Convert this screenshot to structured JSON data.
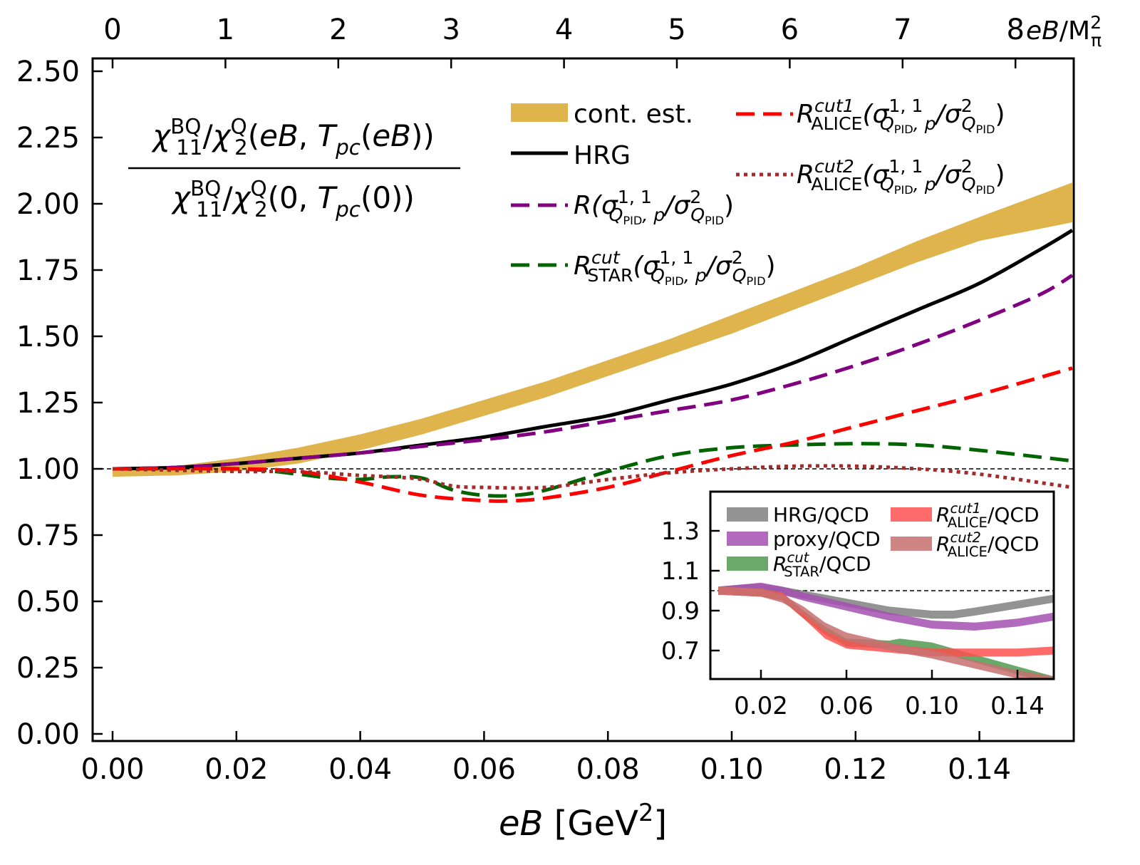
{
  "chart_data": {
    "type": "line",
    "xlabel": [
      {
        "t": "eB",
        "i": true
      },
      {
        "t": " [GeV"
      },
      {
        "t": "2",
        "s": "sup"
      },
      {
        "t": "]"
      }
    ],
    "xlim": [
      -0.0032,
      0.1552
    ],
    "ylim": [
      -0.027,
      2.55
    ],
    "xticks": [
      "0.00",
      "0.02",
      "0.04",
      "0.06",
      "0.08",
      "0.10",
      "0.12",
      "0.14"
    ],
    "xtick_values": [
      0,
      0.02,
      0.04,
      0.06,
      0.08,
      0.1,
      0.12,
      0.14
    ],
    "yticks": [
      "0.00",
      "0.25",
      "0.50",
      "0.75",
      "1.00",
      "1.25",
      "1.50",
      "1.75",
      "2.00",
      "2.25",
      "2.50"
    ],
    "ytick_values": [
      0,
      0.25,
      0.5,
      0.75,
      1.0,
      1.25,
      1.5,
      1.75,
      2.0,
      2.25,
      2.5
    ],
    "top_axis": {
      "ticks": [
        "0",
        "1",
        "2",
        "3",
        "4",
        "5",
        "6",
        "7",
        "8"
      ],
      "tick_values": [
        0,
        1,
        2,
        3,
        4,
        5,
        6,
        7,
        8
      ],
      "label": [
        {
          "t": "eB",
          "i": true
        },
        {
          "t": "/M"
        },
        {
          "t": "2",
          "s": "sup"
        },
        {
          "t": "π",
          "s": "sub",
          "stack": true
        }
      ]
    },
    "ylabel_numerator": [
      {
        "t": "χ",
        "i": true
      },
      {
        "t": "BQ",
        "s": "sup"
      },
      {
        "t": "11",
        "s": "sub",
        "stack": true
      },
      {
        "t": "/"
      },
      {
        "t": "χ",
        "i": true
      },
      {
        "t": "Q",
        "s": "sup"
      },
      {
        "t": "2",
        "s": "sub",
        "stack": true
      },
      {
        "t": "("
      },
      {
        "t": "eB",
        "i": true
      },
      {
        "t": ", "
      },
      {
        "t": "T",
        "i": true
      },
      {
        "t": "pc",
        "s": "sub",
        "i": true
      },
      {
        "t": "("
      },
      {
        "t": "eB",
        "i": true
      },
      {
        "t": "))"
      }
    ],
    "ylabel_denominator": [
      {
        "t": "χ",
        "i": true
      },
      {
        "t": "BQ",
        "s": "sup"
      },
      {
        "t": "11",
        "s": "sub",
        "stack": true
      },
      {
        "t": "/"
      },
      {
        "t": "χ",
        "i": true
      },
      {
        "t": "Q",
        "s": "sup"
      },
      {
        "t": "2",
        "s": "sub",
        "stack": true
      },
      {
        "t": "(0, "
      },
      {
        "t": "T",
        "i": true
      },
      {
        "t": "pc",
        "s": "sub",
        "i": true
      },
      {
        "t": "(0))"
      }
    ],
    "reference_line": 1.0,
    "bands": [
      {
        "name": "cont. est.",
        "color": "#e0b44c",
        "x": [
          0,
          0.01,
          0.02,
          0.03,
          0.04,
          0.05,
          0.06,
          0.07,
          0.08,
          0.09,
          0.1,
          0.11,
          0.12,
          0.13,
          0.14,
          0.155
        ],
        "lower": [
          0.97,
          0.975,
          0.99,
          1.02,
          1.07,
          1.13,
          1.2,
          1.27,
          1.35,
          1.43,
          1.51,
          1.6,
          1.69,
          1.78,
          1.86,
          1.93
        ],
        "upper": [
          1.0,
          1.01,
          1.04,
          1.08,
          1.13,
          1.19,
          1.26,
          1.33,
          1.41,
          1.49,
          1.58,
          1.67,
          1.76,
          1.86,
          1.95,
          2.08
        ]
      }
    ],
    "series": [
      {
        "name": "HRG",
        "color": "#000000",
        "style": "solid",
        "x": [
          0,
          0.01,
          0.02,
          0.03,
          0.04,
          0.05,
          0.06,
          0.07,
          0.08,
          0.09,
          0.1,
          0.11,
          0.12,
          0.13,
          0.14,
          0.15,
          0.155
        ],
        "y": [
          1.0,
          1.005,
          1.02,
          1.04,
          1.06,
          1.09,
          1.12,
          1.16,
          1.2,
          1.26,
          1.32,
          1.4,
          1.5,
          1.6,
          1.7,
          1.83,
          1.9
        ]
      },
      {
        "name": "R proxy",
        "color": "#800080",
        "style": "dashed",
        "x": [
          0,
          0.01,
          0.02,
          0.03,
          0.04,
          0.05,
          0.06,
          0.07,
          0.08,
          0.09,
          0.1,
          0.11,
          0.12,
          0.13,
          0.14,
          0.15,
          0.155
        ],
        "y": [
          1.0,
          1.005,
          1.02,
          1.04,
          1.06,
          1.085,
          1.11,
          1.14,
          1.18,
          1.22,
          1.26,
          1.32,
          1.39,
          1.47,
          1.56,
          1.66,
          1.73
        ]
      },
      {
        "name": "R STAR cut",
        "color": "#006400",
        "style": "dashed",
        "x": [
          0,
          0.02,
          0.03,
          0.035,
          0.04,
          0.045,
          0.05,
          0.055,
          0.06,
          0.065,
          0.07,
          0.08,
          0.09,
          0.1,
          0.11,
          0.12,
          0.13,
          0.14,
          0.155
        ],
        "y": [
          1.0,
          1.0,
          0.98,
          0.965,
          0.96,
          0.97,
          0.965,
          0.92,
          0.9,
          0.9,
          0.92,
          0.99,
          1.05,
          1.08,
          1.09,
          1.095,
          1.09,
          1.07,
          1.03
        ]
      },
      {
        "name": "R ALICE cut1",
        "color": "#ff0000",
        "style": "dashed",
        "x": [
          0,
          0.02,
          0.03,
          0.04,
          0.05,
          0.06,
          0.065,
          0.07,
          0.08,
          0.09,
          0.1,
          0.11,
          0.12,
          0.13,
          0.14,
          0.155
        ],
        "y": [
          1.0,
          1.0,
          0.99,
          0.95,
          0.9,
          0.88,
          0.88,
          0.89,
          0.93,
          0.99,
          1.05,
          1.1,
          1.16,
          1.22,
          1.28,
          1.38
        ]
      },
      {
        "name": "R ALICE cut2",
        "color": "#a52a2a",
        "style": "dotted",
        "x": [
          0,
          0.02,
          0.03,
          0.04,
          0.045,
          0.05,
          0.055,
          0.06,
          0.07,
          0.08,
          0.09,
          0.1,
          0.11,
          0.12,
          0.13,
          0.14,
          0.155
        ],
        "y": [
          1.0,
          0.99,
          0.99,
          0.975,
          0.97,
          0.96,
          0.935,
          0.93,
          0.93,
          0.96,
          0.985,
          1.0,
          1.01,
          1.01,
          1.0,
          0.98,
          0.93
        ]
      }
    ],
    "legend": [
      {
        "kind": "band",
        "color": "#e0b44c",
        "label": [
          {
            "t": "cont. est."
          }
        ]
      },
      {
        "kind": "solid",
        "color": "#000000",
        "label": [
          {
            "t": "HRG"
          }
        ]
      },
      {
        "kind": "dashed",
        "color": "#800080",
        "label": [
          {
            "t": "R",
            "i": true
          },
          {
            "t": "(σ",
            "i": true
          },
          {
            "t": "1, 1",
            "s": "sup"
          },
          {
            "t": "Q",
            "s": "sub",
            "stack": true,
            "i": true
          },
          {
            "t": "PID",
            "s": "ssub"
          },
          {
            "t": ", p",
            "s": "sub",
            "i": true
          },
          {
            "t": "/σ",
            "i": true
          },
          {
            "t": "2",
            "s": "sup"
          },
          {
            "t": "Q",
            "s": "sub",
            "stack": true,
            "i": true
          },
          {
            "t": "PID",
            "s": "ssub"
          },
          {
            "t": ")"
          }
        ]
      },
      {
        "kind": "dashed",
        "color": "#006400",
        "label": [
          {
            "t": "R",
            "i": true
          },
          {
            "t": "cut",
            "s": "sup",
            "i": true
          },
          {
            "t": "STAR",
            "s": "sub",
            "stack": true
          },
          {
            "t": "(σ",
            "i": true
          },
          {
            "t": "1, 1",
            "s": "sup"
          },
          {
            "t": "Q",
            "s": "sub",
            "stack": true,
            "i": true
          },
          {
            "t": "PID",
            "s": "ssub"
          },
          {
            "t": ", p",
            "s": "sub",
            "i": true
          },
          {
            "t": "/σ",
            "i": true
          },
          {
            "t": "2",
            "s": "sup"
          },
          {
            "t": "Q",
            "s": "sub",
            "stack": true,
            "i": true
          },
          {
            "t": "PID",
            "s": "ssub"
          },
          {
            "t": ")"
          }
        ]
      },
      {
        "kind": "dashed",
        "color": "#ff0000",
        "label": [
          {
            "t": "R",
            "i": true
          },
          {
            "t": "cut1",
            "s": "sup",
            "i": true
          },
          {
            "t": "ALICE",
            "s": "sub",
            "stack": true
          },
          {
            "t": "(σ",
            "i": true
          },
          {
            "t": "1, 1",
            "s": "sup"
          },
          {
            "t": "Q",
            "s": "sub",
            "stack": true,
            "i": true
          },
          {
            "t": "PID",
            "s": "ssub"
          },
          {
            "t": ", p",
            "s": "sub",
            "i": true
          },
          {
            "t": "/σ",
            "i": true
          },
          {
            "t": "2",
            "s": "sup"
          },
          {
            "t": "Q",
            "s": "sub",
            "stack": true,
            "i": true
          },
          {
            "t": "PID",
            "s": "ssub"
          },
          {
            "t": ")"
          }
        ]
      },
      {
        "kind": "dotted",
        "color": "#a52a2a",
        "label": [
          {
            "t": "R",
            "i": true
          },
          {
            "t": "cut2",
            "s": "sup",
            "i": true
          },
          {
            "t": "ALICE",
            "s": "sub",
            "stack": true
          },
          {
            "t": "(σ",
            "i": true
          },
          {
            "t": "1, 1",
            "s": "sup"
          },
          {
            "t": "Q",
            "s": "sub",
            "stack": true,
            "i": true
          },
          {
            "t": "PID",
            "s": "ssub"
          },
          {
            "t": ", p",
            "s": "sub",
            "i": true
          },
          {
            "t": "/σ",
            "i": true
          },
          {
            "t": "2",
            "s": "sup"
          },
          {
            "t": "Q",
            "s": "sub",
            "stack": true,
            "i": true
          },
          {
            "t": "PID",
            "s": "ssub"
          },
          {
            "t": ")"
          }
        ]
      }
    ],
    "inset": {
      "type": "band",
      "xlim": [
        -0.0037,
        0.157
      ],
      "ylim": [
        0.557,
        1.5
      ],
      "xticks": [
        "0.02",
        "0.06",
        "0.10",
        "0.14"
      ],
      "xtick_values": [
        0.02,
        0.06,
        0.1,
        0.14
      ],
      "yticks": [
        "0.7",
        "0.9",
        "1.1",
        "1.3"
      ],
      "ytick_values": [
        0.7,
        0.9,
        1.1,
        1.3
      ],
      "reference_line": 1.0,
      "band_halfwidth": 0.02,
      "series": [
        {
          "name": "HRG/QCD",
          "color": "#808080",
          "label": [
            {
              "t": "HRG/QCD"
            }
          ],
          "x": [
            0,
            0.01,
            0.02,
            0.03,
            0.04,
            0.06,
            0.08,
            0.1,
            0.11,
            0.12,
            0.14,
            0.157
          ],
          "y": [
            1.0,
            1.01,
            1.015,
            1.0,
            0.98,
            0.94,
            0.9,
            0.88,
            0.88,
            0.895,
            0.93,
            0.96
          ]
        },
        {
          "name": "proxy/QCD",
          "color": "#a550b0",
          "label": [
            {
              "t": "proxy/QCD"
            }
          ],
          "x": [
            0,
            0.01,
            0.02,
            0.03,
            0.04,
            0.06,
            0.08,
            0.1,
            0.12,
            0.14,
            0.157
          ],
          "y": [
            1.0,
            1.01,
            1.02,
            1.0,
            0.97,
            0.92,
            0.87,
            0.83,
            0.82,
            0.84,
            0.87
          ]
        },
        {
          "name": "R STAR cut/QCD",
          "color": "#4f9a4f",
          "label": [
            {
              "t": "R",
              "i": true
            },
            {
              "t": "cut",
              "s": "sup",
              "i": true
            },
            {
              "t": "STAR",
              "s": "sub",
              "stack": true
            },
            {
              "t": "/QCD"
            }
          ],
          "x": [
            0,
            0.02,
            0.03,
            0.04,
            0.05,
            0.06,
            0.08,
            0.085,
            0.1,
            0.12,
            0.14,
            0.157
          ],
          "y": [
            1.0,
            0.99,
            0.97,
            0.88,
            0.8,
            0.74,
            0.73,
            0.74,
            0.72,
            0.66,
            0.6,
            0.55
          ]
        },
        {
          "name": "R ALICE cut1/QCD",
          "color": "#ff5050",
          "label": [
            {
              "t": "R",
              "i": true
            },
            {
              "t": "cut1",
              "s": "sup",
              "i": true
            },
            {
              "t": "ALICE",
              "s": "sub",
              "stack": true
            },
            {
              "t": "/QCD"
            }
          ],
          "x": [
            0,
            0.02,
            0.03,
            0.04,
            0.05,
            0.06,
            0.08,
            0.1,
            0.12,
            0.14,
            0.157
          ],
          "y": [
            1.0,
            0.99,
            0.97,
            0.88,
            0.78,
            0.73,
            0.71,
            0.69,
            0.69,
            0.69,
            0.7
          ]
        },
        {
          "name": "R ALICE cut2/QCD",
          "color": "#c87070",
          "label": [
            {
              "t": "R",
              "i": true
            },
            {
              "t": "cut2",
              "s": "sup",
              "i": true
            },
            {
              "t": "ALICE",
              "s": "sub",
              "stack": true
            },
            {
              "t": "/QCD"
            }
          ],
          "x": [
            0,
            0.02,
            0.03,
            0.04,
            0.05,
            0.06,
            0.08,
            0.1,
            0.12,
            0.14,
            0.157
          ],
          "y": [
            1.0,
            0.99,
            0.96,
            0.9,
            0.82,
            0.77,
            0.72,
            0.68,
            0.63,
            0.58,
            0.55
          ]
        }
      ]
    }
  }
}
